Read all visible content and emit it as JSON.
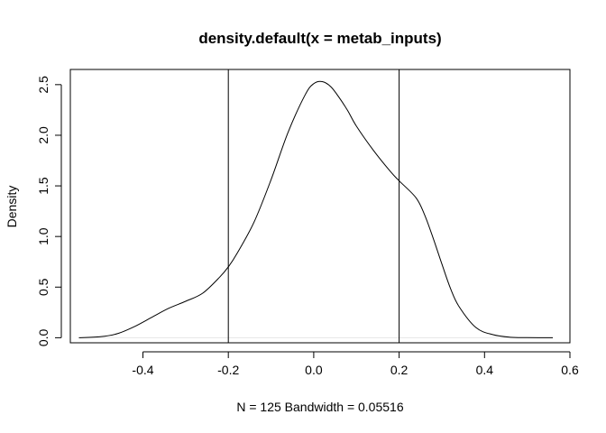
{
  "chart_data": {
    "type": "line",
    "title": "density.default(x = metab_inputs)",
    "xlabel": "N = 125   Bandwidth = 0.05516",
    "ylabel": "Density",
    "xlim": [
      -0.57,
      0.6
    ],
    "ylim": [
      -0.05,
      2.65
    ],
    "x_ticks": [
      -0.4,
      -0.2,
      0.0,
      0.2,
      0.4,
      0.6
    ],
    "x_tick_labels": [
      "-0.4",
      "-0.2",
      "0.0",
      "0.2",
      "0.4",
      "0.6"
    ],
    "y_ticks": [
      0.0,
      0.5,
      1.0,
      1.5,
      2.0,
      2.5
    ],
    "y_tick_labels": [
      "0.0",
      "0.5",
      "1.0",
      "1.5",
      "2.0",
      "2.5"
    ],
    "grid": false,
    "baseline_y": 0,
    "vertical_lines_x": [
      -0.2,
      0.2
    ],
    "series": [
      {
        "x": [
          -0.55,
          -0.5,
          -0.46,
          -0.42,
          -0.38,
          -0.34,
          -0.3,
          -0.26,
          -0.22,
          -0.2,
          -0.18,
          -0.14,
          -0.1,
          -0.06,
          -0.02,
          0.0,
          0.02,
          0.04,
          0.06,
          0.08,
          0.1,
          0.14,
          0.18,
          0.2,
          0.24,
          0.26,
          0.28,
          0.3,
          0.32,
          0.34,
          0.38,
          0.42,
          0.46,
          0.5,
          0.56
        ],
        "y": [
          0.0,
          0.01,
          0.04,
          0.11,
          0.2,
          0.29,
          0.36,
          0.44,
          0.6,
          0.7,
          0.83,
          1.14,
          1.56,
          2.03,
          2.4,
          2.51,
          2.53,
          2.48,
          2.37,
          2.24,
          2.09,
          1.85,
          1.64,
          1.55,
          1.38,
          1.21,
          0.98,
          0.73,
          0.49,
          0.31,
          0.1,
          0.03,
          0.005,
          0.001,
          0.0
        ]
      }
    ]
  }
}
